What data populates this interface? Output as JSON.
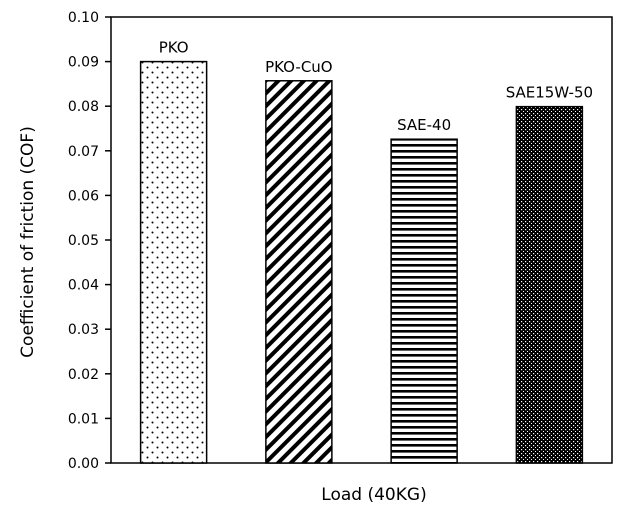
{
  "chart_data": {
    "type": "bar",
    "categories": [
      "PKO",
      "PKO-CuO",
      "SAE-40",
      "SAE15W-50"
    ],
    "values": [
      0.09,
      0.0857,
      0.0726,
      0.0799
    ],
    "patterns": [
      "sparse-dots",
      "diagonal-hatch",
      "horizontal-lines",
      "dense-dots"
    ],
    "xlabel": "Load (40KG)",
    "ylabel": "Coefficient of friction (COF)",
    "ylim": [
      0,
      0.1
    ],
    "yticks": [
      "0.00",
      "0.01",
      "0.02",
      "0.03",
      "0.04",
      "0.05",
      "0.06",
      "0.07",
      "0.08",
      "0.09",
      "0.10"
    ],
    "grid": false,
    "legend": "none",
    "colors": {
      "bar_outline": "#000000",
      "pattern_ink": "#000000",
      "background": "#ffffff"
    }
  }
}
